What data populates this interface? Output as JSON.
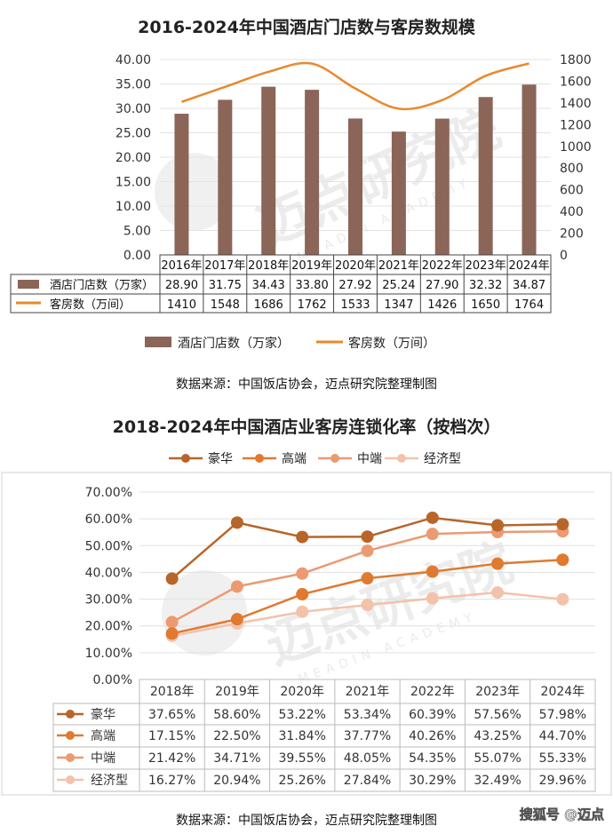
{
  "chart_data": [
    {
      "type": "bar",
      "title": "2016-2024年中国酒店门店数与客房数规模",
      "categories": [
        "2016年",
        "2017年",
        "2018年",
        "2019年",
        "2020年",
        "2021年",
        "2022年",
        "2023年",
        "2024年"
      ],
      "series": [
        {
          "name": "酒店门店数（万家）",
          "table_label": "酒店门店数（万家）",
          "axis": "left",
          "kind": "bar",
          "color": "#8a6558",
          "values": [
            28.9,
            31.75,
            34.43,
            33.8,
            27.92,
            25.24,
            27.9,
            32.32,
            34.87
          ],
          "labels": [
            "28.90",
            "31.75",
            "34.43",
            "33.80",
            "27.92",
            "25.24",
            "27.90",
            "32.32",
            "34.87"
          ]
        },
        {
          "name": "客房数（万间）",
          "table_label": "客房数（万间）",
          "axis": "right",
          "kind": "line",
          "color": "#e8892c",
          "values": [
            1410,
            1548,
            1686,
            1762,
            1533,
            1347,
            1426,
            1650,
            1764
          ],
          "labels": [
            "1410",
            "1548",
            "1686",
            "1762",
            "1533",
            "1347",
            "1426",
            "1650",
            "1764"
          ]
        }
      ],
      "ylim": [
        0,
        40
      ],
      "yticks": [
        "0.00",
        "5.00",
        "10.00",
        "15.00",
        "20.00",
        "25.00",
        "30.00",
        "35.00",
        "40.00"
      ],
      "y2lim": [
        0,
        1800
      ],
      "y2ticks": [
        "0",
        "200",
        "400",
        "600",
        "800",
        "1000",
        "1200",
        "1400",
        "1600",
        "1800"
      ],
      "legend": [
        "酒店门店数（万家）",
        "客房数（万间）"
      ],
      "legend_position": "bottom",
      "source": "数据来源：中国饭店协会，迈点研究院整理制图"
    },
    {
      "type": "line",
      "title": "2018-2024年中国酒店业客房连锁化率（按档次）",
      "categories": [
        "2018年",
        "2019年",
        "2020年",
        "2021年",
        "2022年",
        "2023年",
        "2024年"
      ],
      "series": [
        {
          "name": "豪华",
          "color": "#b8652a",
          "values": [
            37.65,
            58.6,
            53.22,
            53.34,
            60.39,
            57.56,
            57.98
          ],
          "labels": [
            "37.65%",
            "58.60%",
            "53.22%",
            "53.34%",
            "60.39%",
            "57.56%",
            "57.98%"
          ]
        },
        {
          "name": "高端",
          "color": "#df7a30",
          "values": [
            17.15,
            22.5,
            31.84,
            37.77,
            40.26,
            43.25,
            44.7
          ],
          "labels": [
            "17.15%",
            "22.50%",
            "31.84%",
            "37.77%",
            "40.26%",
            "43.25%",
            "44.70%"
          ]
        },
        {
          "name": "中端",
          "color": "#eb9a72",
          "values": [
            21.42,
            34.71,
            39.55,
            48.05,
            54.35,
            55.07,
            55.33
          ],
          "labels": [
            "21.42%",
            "34.71%",
            "39.55%",
            "48.05%",
            "54.35%",
            "55.07%",
            "55.33%"
          ]
        },
        {
          "name": "经济型",
          "color": "#f3c2aa",
          "values": [
            16.27,
            20.94,
            25.26,
            27.84,
            30.29,
            32.49,
            29.96
          ],
          "labels": [
            "16.27%",
            "20.94%",
            "25.26%",
            "27.84%",
            "30.29%",
            "32.49%",
            "29.96%"
          ]
        }
      ],
      "ylim": [
        0,
        70
      ],
      "yticks": [
        "0.00%",
        "10.00%",
        "20.00%",
        "30.00%",
        "40.00%",
        "50.00%",
        "60.00%",
        "70.00%"
      ],
      "legend_position": "top",
      "source": "数据来源：中国饭店协会，迈点研究院整理制图"
    }
  ],
  "watermark": {
    "text": "迈点研究院",
    "subtext": "MEADIN ACADEMY"
  },
  "credit": "搜狐号 @迈点"
}
